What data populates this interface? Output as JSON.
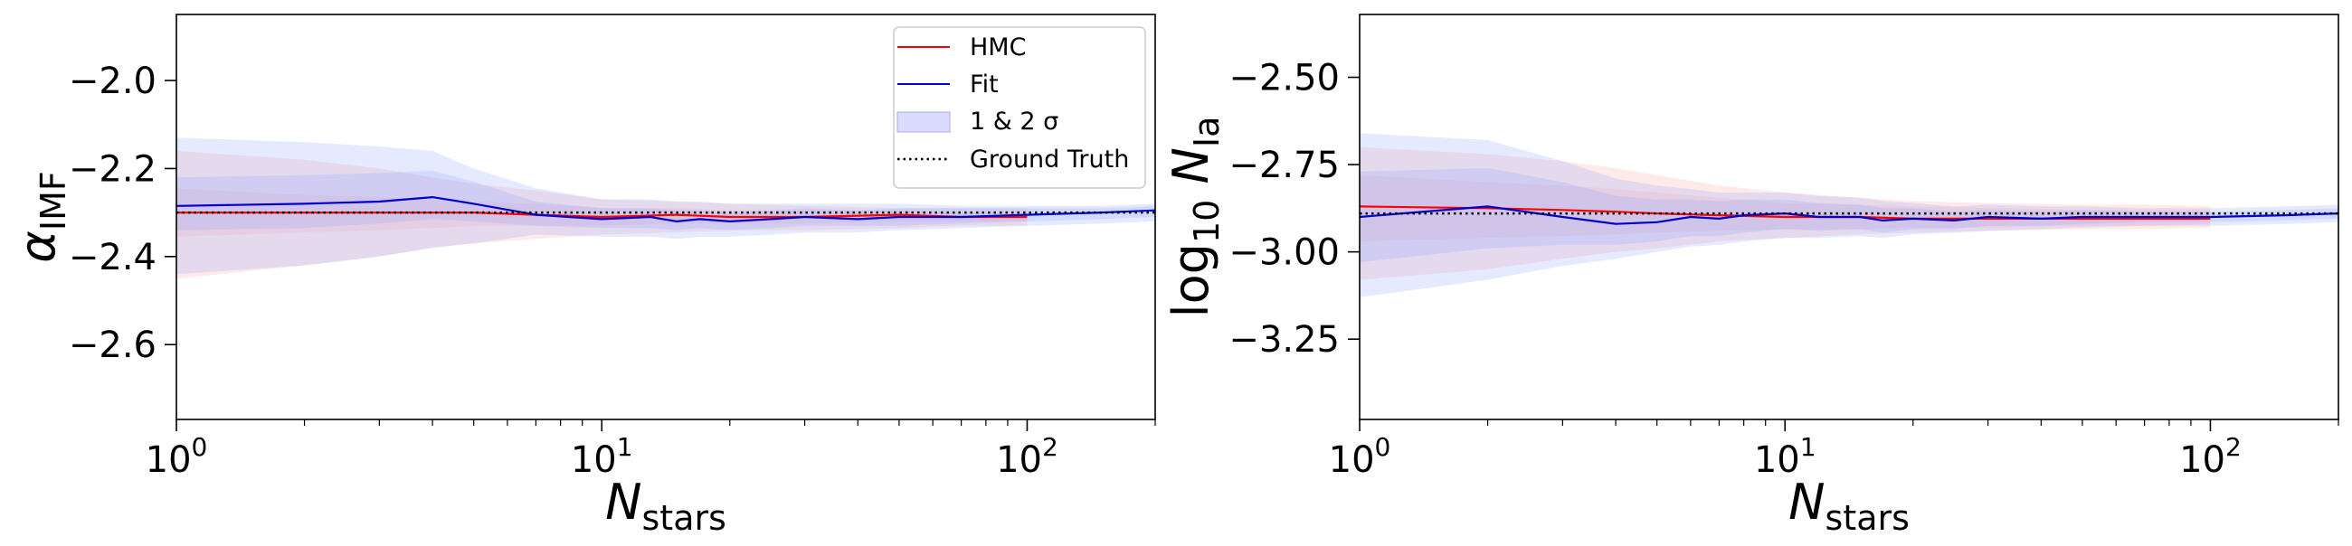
{
  "chart_data": [
    {
      "type": "line",
      "ylabel_main": "α",
      "ylabel_sub": "IMF",
      "xlabel_main": "N",
      "xlabel_sub": "stars",
      "xscale": "log",
      "xlim": [
        1,
        200
      ],
      "ylim": [
        -2.77,
        -1.85
      ],
      "yticks": [
        -2.0,
        -2.2,
        -2.4,
        -2.6
      ],
      "yticklabels": [
        "−2.0",
        "−2.2",
        "−2.4",
        "−2.6"
      ],
      "xticks": [
        1,
        10,
        100
      ],
      "xtick_base": "10",
      "xtick_exps": [
        "0",
        "1",
        "2"
      ],
      "ground_truth": -2.3,
      "legend": {
        "position": "upper right",
        "entries": [
          {
            "label": "HMC",
            "style": "line",
            "color": "#ff0000"
          },
          {
            "label": "Fit",
            "style": "line",
            "color": "#0000cd"
          },
          {
            "label": "1 & 2 σ",
            "style": "patch",
            "color": "#ccccff"
          },
          {
            "label": "Ground Truth",
            "style": "dotted",
            "color": "#000000"
          }
        ]
      },
      "series": [
        {
          "name": "HMC",
          "x": [
            1,
            2,
            3,
            4,
            5,
            7,
            10,
            15,
            20,
            30,
            50,
            70,
            100
          ],
          "y": [
            -2.3,
            -2.3,
            -2.3,
            -2.3,
            -2.3,
            -2.305,
            -2.31,
            -2.305,
            -2.31,
            -2.31,
            -2.305,
            -2.31,
            -2.31
          ],
          "band1": [
            [
              -2.355,
              -2.245
            ],
            [
              -2.345,
              -2.26
            ],
            [
              -2.34,
              -2.265
            ],
            [
              -2.335,
              -2.27
            ],
            [
              -2.33,
              -2.275
            ],
            [
              -2.33,
              -2.28
            ],
            [
              -2.33,
              -2.29
            ],
            [
              -2.325,
              -2.29
            ],
            [
              -2.325,
              -2.295
            ],
            [
              -2.325,
              -2.295
            ],
            [
              -2.32,
              -2.295
            ],
            [
              -2.32,
              -2.3
            ],
            [
              -2.32,
              -2.3
            ]
          ],
          "band2": [
            [
              -2.45,
              -2.16
            ],
            [
              -2.42,
              -2.18
            ],
            [
              -2.4,
              -2.2
            ],
            [
              -2.38,
              -2.22
            ],
            [
              -2.37,
              -2.235
            ],
            [
              -2.36,
              -2.25
            ],
            [
              -2.35,
              -2.27
            ],
            [
              -2.345,
              -2.275
            ],
            [
              -2.34,
              -2.28
            ],
            [
              -2.34,
              -2.285
            ],
            [
              -2.335,
              -2.29
            ],
            [
              -2.33,
              -2.29
            ],
            [
              -2.33,
              -2.29
            ]
          ]
        },
        {
          "name": "Fit",
          "x": [
            1,
            2,
            3,
            4,
            5,
            7,
            10,
            13,
            15,
            17,
            20,
            25,
            30,
            40,
            50,
            70,
            100,
            150,
            200
          ],
          "y": [
            -2.285,
            -2.28,
            -2.275,
            -2.265,
            -2.28,
            -2.305,
            -2.315,
            -2.31,
            -2.32,
            -2.315,
            -2.32,
            -2.315,
            -2.31,
            -2.315,
            -2.31,
            -2.31,
            -2.305,
            -2.3,
            -2.295
          ],
          "band1": [
            [
              -2.34,
              -2.22
            ],
            [
              -2.335,
              -2.215
            ],
            [
              -2.325,
              -2.21
            ],
            [
              -2.315,
              -2.205
            ],
            [
              -2.32,
              -2.23
            ],
            [
              -2.33,
              -2.275
            ],
            [
              -2.335,
              -2.29
            ],
            [
              -2.335,
              -2.29
            ],
            [
              -2.34,
              -2.295
            ],
            [
              -2.335,
              -2.295
            ],
            [
              -2.34,
              -2.3
            ],
            [
              -2.335,
              -2.295
            ],
            [
              -2.33,
              -2.29
            ],
            [
              -2.33,
              -2.295
            ],
            [
              -2.33,
              -2.29
            ],
            [
              -2.325,
              -2.29
            ],
            [
              -2.32,
              -2.29
            ],
            [
              -2.315,
              -2.29
            ],
            [
              -2.31,
              -2.285
            ]
          ],
          "band2": [
            [
              -2.44,
              -2.13
            ],
            [
              -2.42,
              -2.14
            ],
            [
              -2.4,
              -2.15
            ],
            [
              -2.38,
              -2.16
            ],
            [
              -2.37,
              -2.2
            ],
            [
              -2.35,
              -2.245
            ],
            [
              -2.355,
              -2.27
            ],
            [
              -2.355,
              -2.27
            ],
            [
              -2.36,
              -2.275
            ],
            [
              -2.355,
              -2.275
            ],
            [
              -2.355,
              -2.28
            ],
            [
              -2.35,
              -2.28
            ],
            [
              -2.345,
              -2.28
            ],
            [
              -2.345,
              -2.28
            ],
            [
              -2.34,
              -2.28
            ],
            [
              -2.335,
              -2.285
            ],
            [
              -2.33,
              -2.285
            ],
            [
              -2.325,
              -2.285
            ],
            [
              -2.32,
              -2.28
            ]
          ]
        }
      ]
    },
    {
      "type": "line",
      "ylabel_main": "log",
      "ylabel_sub1": "10",
      "ylabel_mid": " N",
      "ylabel_sub2": "Ia",
      "xlabel_main": "N",
      "xlabel_sub": "stars",
      "xscale": "log",
      "xlim": [
        1,
        200
      ],
      "ylim": [
        -3.48,
        -2.32
      ],
      "yticks": [
        -2.5,
        -2.75,
        -3.0,
        -3.25
      ],
      "yticklabels": [
        "−2.50",
        "−2.75",
        "−3.00",
        "−3.25"
      ],
      "xticks": [
        1,
        10,
        100
      ],
      "xtick_base": "10",
      "xtick_exps": [
        "0",
        "1",
        "2"
      ],
      "ground_truth": -2.89,
      "series": [
        {
          "name": "HMC",
          "x": [
            1,
            2,
            3,
            4,
            5,
            7,
            10,
            15,
            20,
            30,
            50,
            70,
            100
          ],
          "y": [
            -2.87,
            -2.875,
            -2.88,
            -2.885,
            -2.89,
            -2.895,
            -2.9,
            -2.9,
            -2.905,
            -2.905,
            -2.905,
            -2.905,
            -2.905
          ],
          "band1": [
            [
              -2.97,
              -2.78
            ],
            [
              -2.96,
              -2.8
            ],
            [
              -2.955,
              -2.81
            ],
            [
              -2.95,
              -2.82
            ],
            [
              -2.945,
              -2.83
            ],
            [
              -2.94,
              -2.845
            ],
            [
              -2.935,
              -2.86
            ],
            [
              -2.935,
              -2.865
            ],
            [
              -2.93,
              -2.87
            ],
            [
              -2.93,
              -2.875
            ],
            [
              -2.925,
              -2.88
            ],
            [
              -2.925,
              -2.88
            ],
            [
              -2.92,
              -2.88
            ]
          ],
          "band2": [
            [
              -3.08,
              -2.7
            ],
            [
              -3.05,
              -2.72
            ],
            [
              -3.02,
              -2.74
            ],
            [
              -3.0,
              -2.76
            ],
            [
              -2.99,
              -2.78
            ],
            [
              -2.97,
              -2.81
            ],
            [
              -2.96,
              -2.83
            ],
            [
              -2.95,
              -2.845
            ],
            [
              -2.945,
              -2.855
            ],
            [
              -2.94,
              -2.86
            ],
            [
              -2.935,
              -2.865
            ],
            [
              -2.935,
              -2.865
            ],
            [
              -2.93,
              -2.87
            ]
          ]
        },
        {
          "name": "Fit",
          "x": [
            1,
            2,
            3,
            4,
            5,
            6,
            7,
            8,
            10,
            12,
            15,
            17,
            20,
            25,
            30,
            40,
            50,
            70,
            100,
            150,
            200
          ],
          "y": [
            -2.9,
            -2.87,
            -2.9,
            -2.92,
            -2.915,
            -2.9,
            -2.905,
            -2.895,
            -2.89,
            -2.9,
            -2.9,
            -2.91,
            -2.905,
            -2.91,
            -2.9,
            -2.905,
            -2.9,
            -2.9,
            -2.9,
            -2.895,
            -2.89
          ],
          "band1": [
            [
              -3.03,
              -2.77
            ],
            [
              -2.99,
              -2.76
            ],
            [
              -2.98,
              -2.8
            ],
            [
              -2.98,
              -2.84
            ],
            [
              -2.97,
              -2.85
            ],
            [
              -2.955,
              -2.85
            ],
            [
              -2.955,
              -2.855
            ],
            [
              -2.945,
              -2.85
            ],
            [
              -2.935,
              -2.85
            ],
            [
              -2.94,
              -2.86
            ],
            [
              -2.935,
              -2.865
            ],
            [
              -2.945,
              -2.875
            ],
            [
              -2.935,
              -2.875
            ],
            [
              -2.935,
              -2.885
            ],
            [
              -2.925,
              -2.88
            ],
            [
              -2.925,
              -2.885
            ],
            [
              -2.92,
              -2.88
            ],
            [
              -2.915,
              -2.885
            ],
            [
              -2.915,
              -2.885
            ],
            [
              -2.91,
              -2.88
            ],
            [
              -2.905,
              -2.875
            ]
          ],
          "band2": [
            [
              -3.13,
              -2.66
            ],
            [
              -3.08,
              -2.68
            ],
            [
              -3.04,
              -2.74
            ],
            [
              -3.02,
              -2.79
            ],
            [
              -3.0,
              -2.81
            ],
            [
              -2.985,
              -2.82
            ],
            [
              -2.98,
              -2.83
            ],
            [
              -2.97,
              -2.83
            ],
            [
              -2.96,
              -2.83
            ],
            [
              -2.96,
              -2.84
            ],
            [
              -2.955,
              -2.845
            ],
            [
              -2.96,
              -2.855
            ],
            [
              -2.95,
              -2.86
            ],
            [
              -2.945,
              -2.87
            ],
            [
              -2.94,
              -2.865
            ],
            [
              -2.935,
              -2.87
            ],
            [
              -2.93,
              -2.87
            ],
            [
              -2.925,
              -2.875
            ],
            [
              -2.925,
              -2.875
            ],
            [
              -2.92,
              -2.87
            ],
            [
              -2.915,
              -2.865
            ]
          ]
        }
      ]
    }
  ],
  "style": {
    "hmc_color": "#ff0000",
    "fit_color": "#0000cd",
    "hmc_band_color": "#ff9999",
    "fit_band_color": "#99aaff",
    "truth_color": "#000000"
  }
}
